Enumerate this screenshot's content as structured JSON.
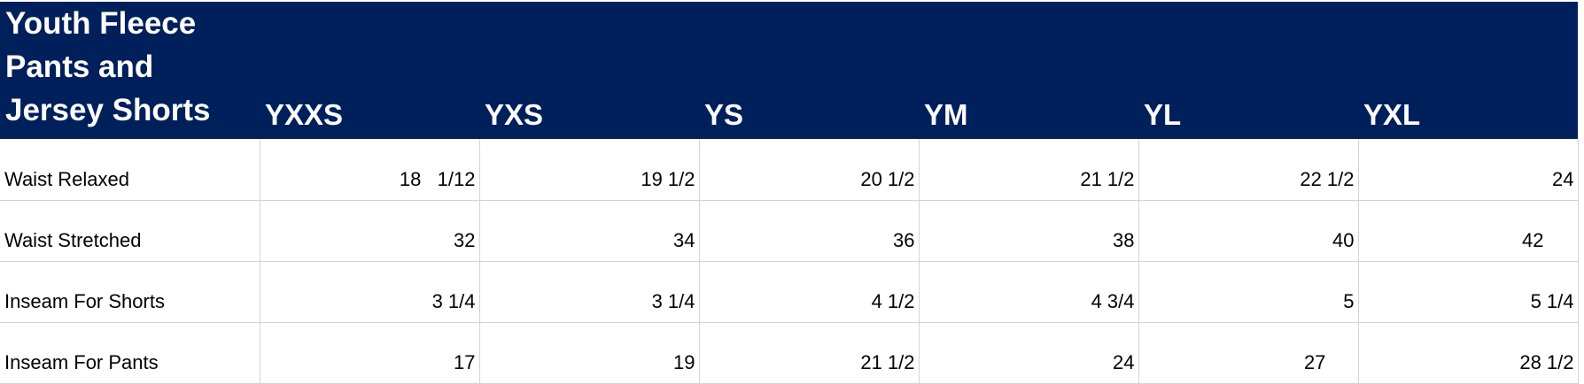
{
  "table": {
    "title": "Youth Fleece Pants and Jersey Shorts",
    "columns": [
      "YXXS",
      "YXS",
      "YS",
      "YM",
      "YL",
      "YXL"
    ],
    "rows": [
      {
        "label": "Waist Relaxed",
        "cells": [
          "18   1/12",
          "19 1/2",
          "20 1/2",
          "21 1/2",
          "22 1/2",
          "24"
        ]
      },
      {
        "label": "Waist Stretched",
        "cells": [
          "32",
          "34",
          "36",
          "38",
          "40",
          "42"
        ]
      },
      {
        "label": "Inseam For Shorts",
        "cells": [
          "3 1/4",
          "3 1/4",
          "4 1/2",
          "4 3/4",
          "5",
          "5 1/4"
        ]
      },
      {
        "label": "Inseam For Pants",
        "cells": [
          "17",
          "19",
          "21 1/2",
          "24",
          "27",
          "28 1/2"
        ]
      }
    ]
  }
}
